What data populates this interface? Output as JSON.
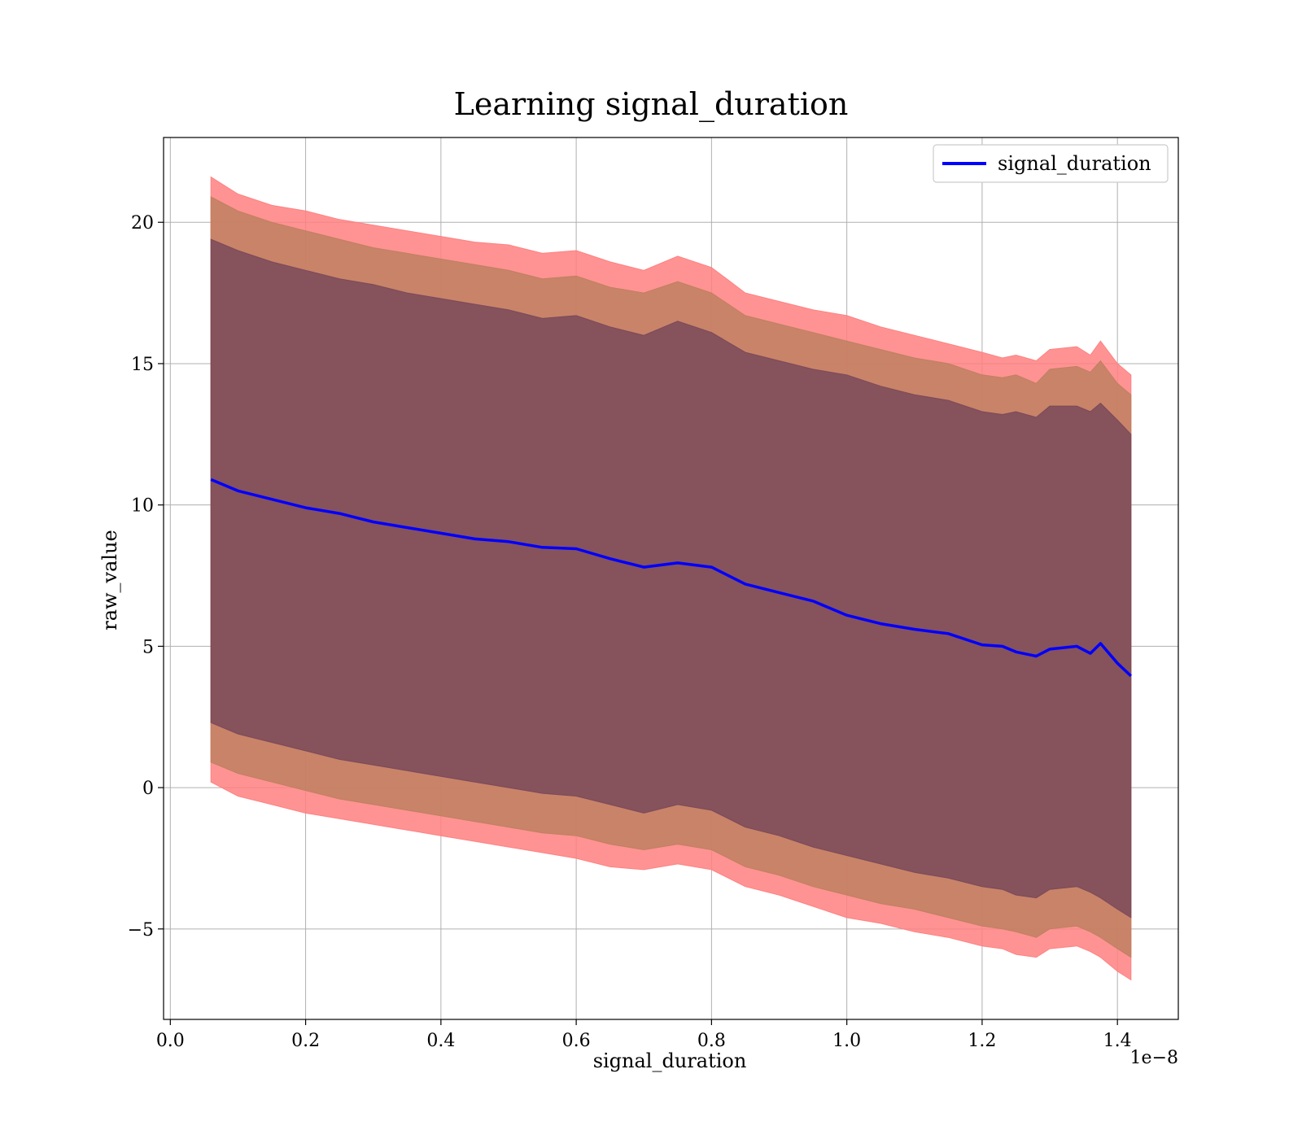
{
  "chart_data": {
    "type": "line",
    "title": "Learning signal_duration",
    "xlabel": "signal_duration",
    "ylabel": "raw_value",
    "x_offset_label": "1e−8",
    "xlim": [
      -0.01,
      1.49
    ],
    "ylim": [
      -8.2,
      23.0
    ],
    "x_ticks": [
      0.0,
      0.2,
      0.4,
      0.6,
      0.8,
      1.0,
      1.2,
      1.4
    ],
    "x_tick_labels": [
      "0.0",
      "0.2",
      "0.4",
      "0.6",
      "0.8",
      "1.0",
      "1.2",
      "1.4"
    ],
    "y_ticks": [
      -5,
      0,
      5,
      10,
      15,
      20
    ],
    "y_tick_labels": [
      "−5",
      "0",
      "5",
      "10",
      "15",
      "20"
    ],
    "grid": true,
    "legend_position": "top-right",
    "colors": {
      "line": "#0000ff",
      "band_outer": "#ff8080",
      "band_middle": "#c08060",
      "band_inner": "#7a4a5a"
    },
    "x": [
      0.06,
      0.1,
      0.15,
      0.2,
      0.25,
      0.3,
      0.35,
      0.4,
      0.45,
      0.5,
      0.55,
      0.6,
      0.65,
      0.7,
      0.75,
      0.8,
      0.85,
      0.9,
      0.95,
      1.0,
      1.05,
      1.1,
      1.15,
      1.2,
      1.23,
      1.25,
      1.28,
      1.3,
      1.34,
      1.36,
      1.375,
      1.4,
      1.42
    ],
    "series": [
      {
        "name": "signal_duration",
        "values": [
          10.9,
          10.5,
          10.2,
          9.9,
          9.7,
          9.4,
          9.2,
          9.0,
          8.8,
          8.7,
          8.5,
          8.45,
          8.1,
          7.8,
          7.95,
          7.8,
          7.2,
          6.9,
          6.6,
          6.1,
          5.8,
          5.6,
          5.45,
          5.05,
          5.0,
          4.8,
          4.65,
          4.9,
          5.0,
          4.75,
          5.1,
          4.4,
          3.95
        ]
      }
    ],
    "bands": [
      {
        "level": "outer",
        "upper": [
          21.6,
          21.0,
          20.6,
          20.4,
          20.1,
          19.9,
          19.7,
          19.5,
          19.3,
          19.2,
          18.9,
          19.0,
          18.6,
          18.3,
          18.8,
          18.4,
          17.5,
          17.2,
          16.9,
          16.7,
          16.3,
          16.0,
          15.7,
          15.4,
          15.2,
          15.3,
          15.1,
          15.5,
          15.6,
          15.3,
          15.8,
          15.0,
          14.6
        ],
        "lower": [
          0.2,
          -0.3,
          -0.6,
          -0.9,
          -1.1,
          -1.3,
          -1.5,
          -1.7,
          -1.9,
          -2.1,
          -2.3,
          -2.5,
          -2.8,
          -2.9,
          -2.7,
          -2.9,
          -3.5,
          -3.8,
          -4.2,
          -4.6,
          -4.8,
          -5.1,
          -5.3,
          -5.6,
          -5.7,
          -5.9,
          -6.0,
          -5.7,
          -5.6,
          -5.8,
          -6.0,
          -6.5,
          -6.8
        ]
      },
      {
        "level": "middle",
        "upper": [
          20.9,
          20.4,
          20.0,
          19.7,
          19.4,
          19.1,
          18.9,
          18.7,
          18.5,
          18.3,
          18.0,
          18.1,
          17.7,
          17.5,
          17.9,
          17.5,
          16.7,
          16.4,
          16.1,
          15.8,
          15.5,
          15.2,
          15.0,
          14.6,
          14.5,
          14.6,
          14.3,
          14.8,
          14.9,
          14.7,
          15.1,
          14.3,
          13.9
        ],
        "lower": [
          0.9,
          0.5,
          0.2,
          -0.1,
          -0.4,
          -0.6,
          -0.8,
          -1.0,
          -1.2,
          -1.4,
          -1.6,
          -1.7,
          -2.0,
          -2.2,
          -2.0,
          -2.2,
          -2.8,
          -3.1,
          -3.5,
          -3.8,
          -4.1,
          -4.3,
          -4.6,
          -4.9,
          -5.0,
          -5.1,
          -5.3,
          -5.0,
          -4.9,
          -5.1,
          -5.3,
          -5.7,
          -6.0
        ]
      },
      {
        "level": "inner",
        "upper": [
          19.4,
          19.0,
          18.6,
          18.3,
          18.0,
          17.8,
          17.5,
          17.3,
          17.1,
          16.9,
          16.6,
          16.7,
          16.3,
          16.0,
          16.5,
          16.1,
          15.4,
          15.1,
          14.8,
          14.6,
          14.2,
          13.9,
          13.7,
          13.3,
          13.2,
          13.3,
          13.1,
          13.5,
          13.5,
          13.3,
          13.6,
          13.0,
          12.5
        ],
        "lower": [
          2.3,
          1.9,
          1.6,
          1.3,
          1.0,
          0.8,
          0.6,
          0.4,
          0.2,
          0.0,
          -0.2,
          -0.3,
          -0.6,
          -0.9,
          -0.6,
          -0.8,
          -1.4,
          -1.7,
          -2.1,
          -2.4,
          -2.7,
          -3.0,
          -3.2,
          -3.5,
          -3.6,
          -3.8,
          -3.9,
          -3.6,
          -3.5,
          -3.7,
          -3.9,
          -4.3,
          -4.6
        ]
      }
    ]
  }
}
